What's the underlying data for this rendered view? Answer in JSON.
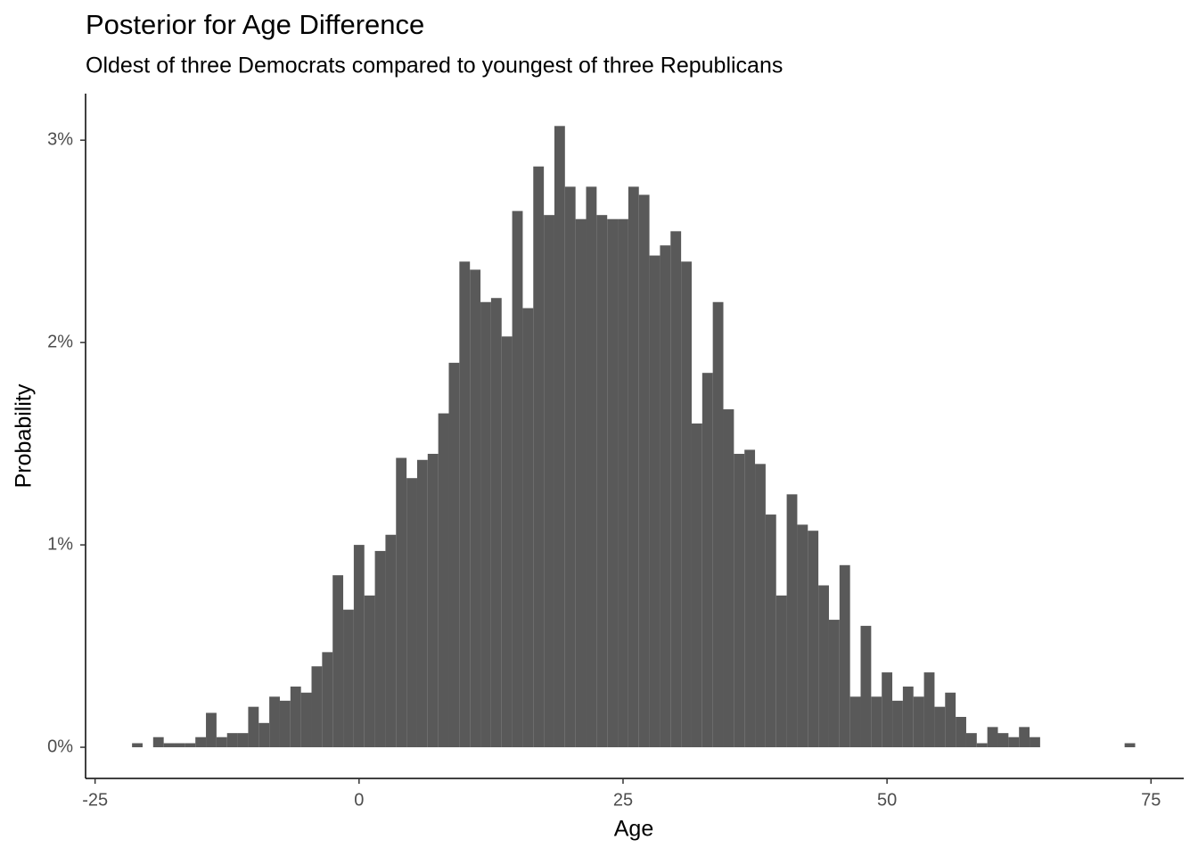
{
  "chart_data": {
    "type": "histogram",
    "title": "Posterior for Age Difference",
    "subtitle": "Oldest of three Democrats compared to youngest of three Republicans",
    "x_label": "Age",
    "y_label": "Probability",
    "color": "#595959",
    "bins": [
      -21.5,
      -20.5,
      -19.5,
      -18.5,
      -17.5,
      -16.5,
      -15.5,
      -14.5,
      -13.5,
      -12.5,
      -11.5,
      -10.5,
      -9.5,
      -8.5,
      -7.5,
      -6.5,
      -5.5,
      -4.5,
      -3.5,
      -2.5,
      -1.5,
      -0.5,
      0.5,
      1.5,
      2.5,
      3.5,
      4.5,
      5.5,
      6.5,
      7.5,
      8.5,
      9.5,
      10.5,
      11.5,
      12.5,
      13.5,
      14.5,
      15.5,
      16.5,
      17.5,
      18.5,
      19.5,
      20.5,
      21.5,
      22.5,
      23.5,
      24.5,
      25.5,
      26.5,
      27.5,
      28.5,
      29.5,
      30.5,
      31.5,
      32.5,
      33.5,
      34.5,
      35.5,
      36.5,
      37.5,
      38.5,
      39.5,
      40.5,
      41.5,
      42.5,
      43.5,
      44.5,
      45.5,
      46.5,
      47.5,
      48.5,
      49.5,
      50.5,
      51.5,
      52.5,
      53.5,
      54.5,
      55.5,
      56.5,
      57.5,
      58.5,
      59.5,
      60.5,
      61.5,
      62.5,
      63.5,
      64.5,
      65.5,
      66.5,
      67.5,
      68.5,
      69.5,
      70.5,
      71.5,
      72.5,
      73.5
    ],
    "counts": [
      0.02,
      0,
      0.05,
      0.02,
      0.02,
      0.02,
      0.05,
      0.17,
      0.05,
      0.07,
      0.07,
      0.2,
      0.12,
      0.25,
      0.23,
      0.3,
      0.27,
      0.4,
      0.47,
      0.85,
      0.68,
      1.0,
      0.75,
      0.97,
      1.05,
      1.43,
      1.33,
      1.42,
      1.45,
      1.65,
      1.9,
      2.4,
      2.36,
      2.2,
      2.22,
      2.03,
      2.65,
      2.17,
      2.87,
      2.63,
      3.07,
      2.77,
      2.61,
      2.77,
      2.63,
      2.61,
      2.61,
      2.77,
      2.73,
      2.43,
      2.48,
      2.55,
      2.4,
      1.6,
      1.85,
      2.2,
      1.67,
      1.45,
      1.47,
      1.4,
      1.15,
      0.75,
      1.25,
      1.1,
      1.07,
      0.8,
      0.63,
      0.9,
      0.25,
      0.6,
      0.25,
      0.37,
      0.23,
      0.3,
      0.25,
      0.37,
      0.2,
      0.27,
      0.15,
      0.07,
      0.02,
      0.1,
      0.07,
      0.05,
      0.1,
      0.05,
      0,
      0,
      0,
      0,
      0,
      0,
      0,
      0,
      0.02
    ],
    "xlim": [
      -25.9,
      78.1
    ],
    "xticks": [
      -25,
      0,
      25,
      50,
      75
    ],
    "ylim": [
      -0.154,
      3.23
    ],
    "yticks": [
      {
        "value": 0,
        "label": "0%"
      },
      {
        "value": 1,
        "label": "1%"
      },
      {
        "value": 2,
        "label": "2%"
      },
      {
        "value": 3,
        "label": "3%"
      }
    ]
  }
}
